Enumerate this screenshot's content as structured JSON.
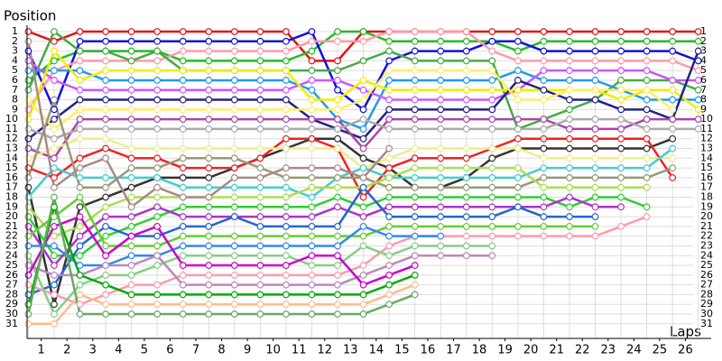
{
  "chart_data": {
    "type": "line",
    "y_label": "Position",
    "x_label": "Laps",
    "x": [
      0,
      1,
      2,
      3,
      4,
      5,
      6,
      7,
      8,
      9,
      10,
      11,
      12,
      13,
      14,
      15,
      16,
      17,
      18,
      19,
      20,
      21,
      22,
      23,
      24,
      25,
      26
    ],
    "xlim": [
      -0.05,
      26.5
    ],
    "xticks": [
      {
        "value": 0.5,
        "label": "1"
      },
      {
        "value": 1.5,
        "label": "2"
      },
      {
        "value": 2.5,
        "label": "3"
      },
      {
        "value": 3.5,
        "label": "4"
      },
      {
        "value": 4.5,
        "label": "5"
      },
      {
        "value": 5.5,
        "label": "6"
      },
      {
        "value": 6.5,
        "label": "7"
      },
      {
        "value": 7.5,
        "label": "8"
      },
      {
        "value": 8.5,
        "label": "9"
      },
      {
        "value": 9.5,
        "label": "10"
      },
      {
        "value": 10.5,
        "label": "11"
      },
      {
        "value": 11.5,
        "label": "12"
      },
      {
        "value": 12.5,
        "label": "13"
      },
      {
        "value": 13.5,
        "label": "14"
      },
      {
        "value": 14.5,
        "label": "15"
      },
      {
        "value": 15.5,
        "label": "16"
      },
      {
        "value": 16.5,
        "label": "17"
      },
      {
        "value": 17.5,
        "label": "18"
      },
      {
        "value": 18.5,
        "label": "19"
      },
      {
        "value": 19.5,
        "label": "20"
      },
      {
        "value": 20.5,
        "label": "21"
      },
      {
        "value": 21.5,
        "label": "22"
      },
      {
        "value": 22.5,
        "label": "23"
      },
      {
        "value": 23.5,
        "label": "24"
      },
      {
        "value": 24.5,
        "label": "25"
      },
      {
        "value": 25.5,
        "label": "26"
      }
    ],
    "ylim": [
      32.5,
      -1.5
    ],
    "yticks": [
      1,
      2,
      3,
      4,
      5,
      6,
      7,
      8,
      9,
      10,
      11,
      12,
      13,
      14,
      15,
      16,
      17,
      18,
      19,
      20,
      21,
      22,
      23,
      24,
      25,
      26,
      27,
      28,
      29,
      30,
      31
    ],
    "grid": true,
    "series": [
      {
        "color": "#e61010",
        "values": [
          1,
          2,
          1,
          1,
          1,
          1,
          1,
          1,
          1,
          1,
          1,
          4,
          4,
          1,
          1,
          1,
          1,
          1,
          1,
          1,
          1,
          1,
          1,
          1,
          1,
          1,
          1
        ]
      },
      {
        "color": "#22bb22",
        "values": [
          6,
          4,
          3,
          3,
          3,
          3,
          4,
          4,
          4,
          4,
          4,
          3,
          1,
          1,
          2,
          2,
          2,
          2,
          2,
          3,
          2,
          2,
          2,
          2,
          2,
          2,
          2
        ]
      },
      {
        "color": "#1010dd",
        "values": [
          3,
          9,
          2,
          2,
          2,
          2,
          2,
          2,
          2,
          2,
          2,
          1,
          7,
          9,
          4,
          3,
          3,
          3,
          2,
          2,
          3,
          3,
          3,
          3,
          3,
          3,
          4
        ]
      },
      {
        "color": "#ff99aa",
        "values": [
          9,
          5,
          4,
          4,
          4,
          4,
          3,
          3,
          3,
          3,
          3,
          2,
          2,
          2,
          1,
          1,
          1,
          1,
          3,
          4,
          4,
          4,
          4,
          4,
          4,
          4,
          5
        ]
      },
      {
        "color": "#44aa44",
        "values": [
          7,
          1,
          3,
          3,
          4,
          3,
          5,
          5,
          5,
          5,
          5,
          5,
          5,
          4,
          3,
          4,
          4,
          4,
          4,
          11,
          10,
          9,
          8,
          6,
          6,
          6,
          7
        ]
      },
      {
        "color": "#2299ee",
        "values": [
          5,
          5,
          5,
          6,
          6,
          6,
          6,
          6,
          6,
          6,
          6,
          7,
          10,
          11,
          6,
          6,
          6,
          6,
          6,
          5,
          6,
          6,
          6,
          7,
          8,
          8,
          8
        ]
      },
      {
        "color": "#cc55ff",
        "values": [
          4,
          6,
          7,
          7,
          7,
          7,
          7,
          7,
          7,
          7,
          7,
          6,
          6,
          7,
          8,
          8,
          8,
          8,
          8,
          7,
          5,
          5,
          5,
          5,
          5,
          6,
          6
        ]
      },
      {
        "color": "#eeee00",
        "values": [
          10,
          3,
          6,
          5,
          5,
          5,
          5,
          5,
          5,
          5,
          5,
          8,
          8,
          6,
          7,
          7,
          7,
          7,
          7,
          7,
          7,
          7,
          7,
          8,
          7,
          7,
          9
        ]
      },
      {
        "color": "#222288",
        "values": [
          12,
          10,
          8,
          8,
          8,
          8,
          8,
          8,
          8,
          8,
          8,
          10,
          11,
          12,
          9,
          9,
          9,
          9,
          9,
          6,
          7,
          8,
          8,
          9,
          9,
          10,
          3
        ]
      },
      {
        "color": "#aa44aa",
        "values": [
          13,
          14,
          10,
          10,
          10,
          10,
          10,
          10,
          10,
          10,
          10,
          10,
          10,
          13,
          10,
          10,
          10,
          10,
          10,
          10,
          10,
          11,
          11,
          11,
          10,
          10,
          10
        ]
      },
      {
        "color": "#aaaaaa",
        "values": [
          11,
          12,
          11,
          11,
          11,
          11,
          11,
          11,
          11,
          11,
          11,
          11,
          11,
          10,
          11,
          11,
          11,
          11,
          11,
          11,
          11,
          10,
          10,
          10,
          11,
          11,
          11
        ]
      },
      {
        "color": "#333333",
        "values": [
          17,
          29,
          19,
          18,
          17,
          16,
          16,
          16,
          15,
          14,
          13,
          12,
          12,
          14,
          15,
          17,
          17,
          16,
          14,
          13,
          13,
          13,
          13,
          13,
          13,
          12,
          null
        ]
      },
      {
        "color": "#ee2222",
        "values": [
          15,
          16,
          14,
          13,
          14,
          14,
          15,
          15,
          15,
          14,
          12,
          12,
          13,
          18,
          15,
          14,
          14,
          14,
          13,
          12,
          12,
          12,
          12,
          12,
          12,
          16,
          null
        ]
      },
      {
        "color": "#ffee66",
        "values": [
          8,
          11,
          9,
          9,
          9,
          9,
          9,
          9,
          9,
          9,
          9,
          9,
          9,
          8,
          5,
          5,
          5,
          5,
          5,
          8,
          8,
          7,
          7,
          7,
          7,
          9,
          null
        ]
      },
      {
        "color": "#eeee88",
        "values": [
          14,
          13,
          12,
          12,
          13,
          13,
          13,
          13,
          13,
          13,
          13,
          13,
          13,
          15,
          14,
          13,
          13,
          13,
          13,
          13,
          14,
          14,
          14,
          14,
          14,
          14,
          null
        ]
      },
      {
        "color": "#44cccc",
        "values": [
          18,
          15,
          16,
          16,
          16,
          16,
          17,
          17,
          17,
          17,
          17,
          18,
          16,
          15,
          16,
          16,
          16,
          16,
          16,
          16,
          15,
          15,
          15,
          15,
          15,
          13,
          null
        ]
      },
      {
        "color": "#999977",
        "values": [
          16,
          8,
          17,
          17,
          15,
          15,
          14,
          14,
          14,
          15,
          16,
          16,
          16,
          16,
          17,
          17,
          17,
          17,
          17,
          17,
          16,
          16,
          16,
          16,
          16,
          15,
          null
        ]
      },
      {
        "color": "#aadd55",
        "values": [
          19,
          22,
          21,
          19,
          18,
          18,
          18,
          18,
          18,
          18,
          18,
          17,
          17,
          17,
          16,
          15,
          15,
          15,
          15,
          15,
          17,
          17,
          17,
          17,
          17,
          null,
          null
        ]
      },
      {
        "color": "#33cc33",
        "values": [
          20,
          24,
          24,
          22,
          21,
          20,
          19,
          19,
          19,
          19,
          19,
          19,
          18,
          19,
          18,
          18,
          18,
          18,
          18,
          18,
          18,
          19,
          18,
          18,
          19,
          null,
          null
        ]
      },
      {
        "color": "#aa33cc",
        "values": [
          21,
          25,
          22,
          20,
          20,
          19,
          20,
          20,
          20,
          20,
          20,
          20,
          19,
          20,
          19,
          19,
          19,
          19,
          19,
          19,
          19,
          18,
          19,
          19,
          null,
          null,
          null
        ]
      },
      {
        "color": "#2266cc",
        "values": [
          28,
          27,
          23,
          21,
          22,
          22,
          21,
          21,
          20,
          21,
          21,
          21,
          21,
          17,
          20,
          20,
          20,
          20,
          20,
          19,
          20,
          20,
          20,
          null,
          null,
          null,
          null
        ]
      },
      {
        "color": "#66cc33",
        "values": [
          22,
          20,
          18,
          23,
          23,
          23,
          22,
          22,
          22,
          22,
          22,
          22,
          22,
          22,
          21,
          21,
          21,
          21,
          21,
          21,
          21,
          21,
          21,
          null,
          null,
          null,
          null
        ]
      },
      {
        "color": "#ff99aa",
        "values": [
          27,
          28,
          29,
          28,
          27,
          27,
          26,
          26,
          26,
          26,
          26,
          26,
          26,
          25,
          23,
          22,
          22,
          22,
          22,
          22,
          22,
          22,
          22,
          21,
          20,
          null,
          null
        ]
      },
      {
        "color": "#88cc88",
        "values": [
          24,
          30,
          27,
          26,
          26,
          25,
          24,
          24,
          24,
          24,
          24,
          25,
          25,
          23,
          24,
          23,
          23,
          23,
          23,
          null,
          null,
          null,
          null,
          null,
          null,
          null,
          null
        ]
      },
      {
        "color": "#3388ee",
        "values": [
          23,
          23,
          25,
          25,
          24,
          24,
          23,
          23,
          23,
          23,
          23,
          23,
          23,
          21,
          22,
          22,
          22,
          null,
          null,
          null,
          null,
          null,
          null,
          null,
          null,
          null,
          null
        ]
      },
      {
        "color": "#bb88bb",
        "values": [
          25,
          26,
          26,
          25,
          25,
          24,
          27,
          27,
          27,
          27,
          27,
          27,
          27,
          26,
          25,
          24,
          24,
          24,
          24,
          null,
          null,
          null,
          null,
          null,
          null,
          null,
          null
        ]
      },
      {
        "color": "#cc00cc",
        "values": [
          26,
          21,
          20,
          24,
          22,
          21,
          25,
          25,
          25,
          25,
          25,
          24,
          24,
          27,
          26,
          25,
          null,
          null,
          null,
          null,
          null,
          null,
          null,
          null,
          null,
          null,
          null
        ]
      },
      {
        "color": "#00aa00",
        "values": [
          29,
          19,
          26,
          27,
          28,
          28,
          28,
          28,
          28,
          28,
          28,
          28,
          28,
          28,
          27,
          26,
          null,
          null,
          null,
          null,
          null,
          null,
          null,
          null,
          null,
          null,
          null
        ]
      },
      {
        "color": "#ffbb88",
        "values": [
          31,
          31,
          28,
          29,
          29,
          29,
          29,
          29,
          29,
          29,
          29,
          29,
          29,
          29,
          28,
          27,
          null,
          null,
          null,
          null,
          null,
          null,
          null,
          null,
          null,
          null,
          null
        ]
      },
      {
        "color": "#66aa66",
        "values": [
          30,
          18,
          30,
          30,
          30,
          30,
          30,
          30,
          30,
          30,
          30,
          30,
          30,
          30,
          29,
          28,
          null,
          null,
          null,
          null,
          null,
          null,
          null,
          null,
          null,
          null,
          null
        ]
      },
      {
        "color": "#aa8888",
        "values": [
          2,
          17,
          15,
          14,
          19,
          17,
          18,
          18,
          16,
          16,
          15,
          15,
          15,
          16,
          13,
          null,
          null,
          null,
          null,
          null,
          null,
          null,
          null,
          null,
          null,
          null,
          null
        ]
      }
    ]
  }
}
